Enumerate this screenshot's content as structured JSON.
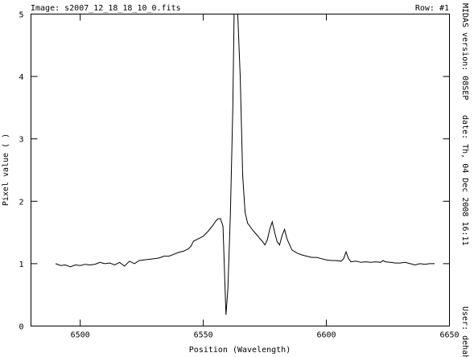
{
  "header": {
    "image_label": "Image: s2007_12_18_18_10_0.fits",
    "row_label": "Row: #1"
  },
  "side": {
    "version": "MIDAS version: 08SEP",
    "date": "date: Th, 04 Dec 2008 16:11",
    "user": "User: dehah"
  },
  "chart_data": {
    "type": "line",
    "xlabel": "Position (Wavelength)",
    "ylabel": "Pixel value ( )",
    "xlim": [
      6480,
      6650
    ],
    "ylim": [
      0,
      5
    ],
    "xticks": [
      6500,
      6550,
      6600,
      6650
    ],
    "yticks": [
      0,
      1,
      2,
      3,
      4,
      5
    ],
    "series": [
      {
        "x": [
          6490,
          6492,
          6494,
          6496,
          6498,
          6500,
          6502,
          6504,
          6506,
          6508,
          6510,
          6512,
          6514,
          6516,
          6518,
          6520,
          6522,
          6524,
          6526,
          6528,
          6530,
          6532,
          6534,
          6536,
          6538,
          6540,
          6542,
          6544,
          6545,
          6546,
          6548,
          6550,
          6552,
          6554,
          6555,
          6556,
          6557,
          6558,
          6558.6,
          6559.2,
          6560,
          6561,
          6562,
          6562.5,
          6563.3,
          6564,
          6565,
          6566,
          6567,
          6568,
          6570,
          6572,
          6573,
          6574,
          6575,
          6576,
          6577,
          6578,
          6579,
          6580,
          6581,
          6582,
          6583,
          6584,
          6586,
          6588,
          6590,
          6592,
          6594,
          6596,
          6598,
          6600,
          6602,
          6604,
          6606,
          6607,
          6608,
          6609,
          6610,
          6612,
          6614,
          6616,
          6618,
          6620,
          6622,
          6623,
          6624,
          6626,
          6628,
          6630,
          6632,
          6634,
          6636,
          6638,
          6640,
          6642,
          6644
        ],
        "y": [
          1.0,
          0.97,
          0.98,
          0.95,
          0.98,
          0.97,
          0.99,
          0.98,
          0.99,
          1.02,
          1.0,
          1.01,
          0.98,
          1.02,
          0.96,
          1.04,
          1.0,
          1.05,
          1.06,
          1.07,
          1.08,
          1.09,
          1.12,
          1.12,
          1.15,
          1.18,
          1.2,
          1.24,
          1.28,
          1.36,
          1.4,
          1.44,
          1.52,
          1.62,
          1.68,
          1.72,
          1.72,
          1.6,
          0.9,
          0.18,
          0.6,
          1.8,
          3.5,
          5.0,
          5.0,
          5.0,
          4.0,
          2.4,
          1.82,
          1.65,
          1.54,
          1.45,
          1.4,
          1.36,
          1.3,
          1.38,
          1.55,
          1.67,
          1.5,
          1.35,
          1.3,
          1.45,
          1.55,
          1.4,
          1.22,
          1.17,
          1.14,
          1.12,
          1.1,
          1.1,
          1.08,
          1.06,
          1.05,
          1.05,
          1.04,
          1.08,
          1.19,
          1.08,
          1.03,
          1.04,
          1.02,
          1.03,
          1.02,
          1.03,
          1.02,
          1.05,
          1.03,
          1.02,
          1.01,
          1.01,
          1.02,
          1.0,
          0.98,
          1.0,
          0.99,
          1.0,
          1.0
        ]
      }
    ]
  }
}
